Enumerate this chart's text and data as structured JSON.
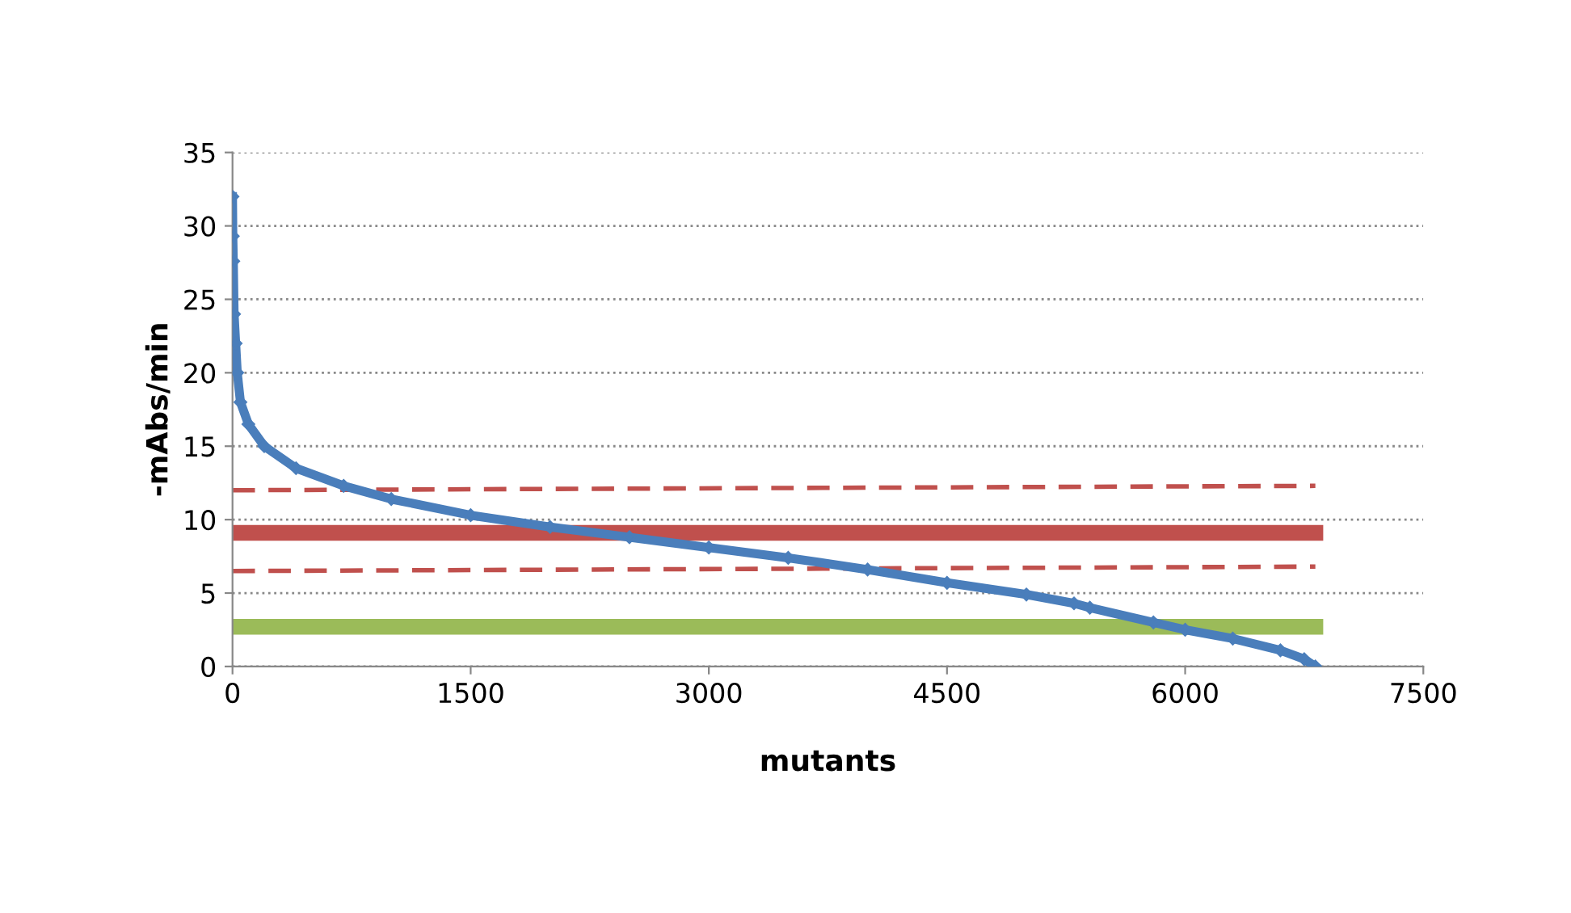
{
  "chart_data": {
    "type": "line",
    "xlabel": "mutants",
    "ylabel": "-mAbs/min",
    "xlim": [
      0,
      7500
    ],
    "xticks": [
      0,
      1500,
      3000,
      4500,
      6000,
      7500
    ],
    "ylim": [
      0,
      35
    ],
    "yticks": [
      0,
      5,
      10,
      15,
      20,
      25,
      30,
      35
    ],
    "grid": "y",
    "series": [
      {
        "color": "#4a7ebb",
        "marker": "diamond",
        "line_style": "solid",
        "x": [
          0,
          2,
          5,
          10,
          20,
          30,
          50,
          100,
          200,
          400,
          700,
          1000,
          1500,
          2000,
          2500,
          3000,
          3500,
          4000,
          4500,
          5000,
          5300,
          5400,
          5800,
          6000,
          6300,
          6600,
          6750,
          6820
        ],
        "values": [
          32,
          29.3,
          27.6,
          24,
          22,
          20,
          18,
          16.5,
          15,
          13.5,
          12.3,
          11.4,
          10.3,
          9.5,
          8.8,
          8.1,
          7.4,
          6.6,
          5.7,
          4.9,
          4.3,
          4.0,
          3.0,
          2.5,
          1.9,
          1.1,
          0.5,
          0
        ]
      },
      {
        "color": "#c0504d",
        "marker": "none",
        "line_style": "dashed",
        "x": [
          0,
          6820
        ],
        "values": [
          12.0,
          12.3
        ]
      },
      {
        "color": "#c0504d",
        "marker": "none",
        "line_style": "solid",
        "x": [
          0,
          6820
        ],
        "values": [
          9.1,
          9.1
        ]
      },
      {
        "color": "#c0504d",
        "marker": "none",
        "line_style": "dashed",
        "x": [
          0,
          6820
        ],
        "values": [
          6.5,
          6.8
        ]
      },
      {
        "color": "#9bbb59",
        "marker": "none",
        "line_style": "solid",
        "x": [
          0,
          6820
        ],
        "values": [
          2.7,
          2.7
        ]
      }
    ]
  }
}
